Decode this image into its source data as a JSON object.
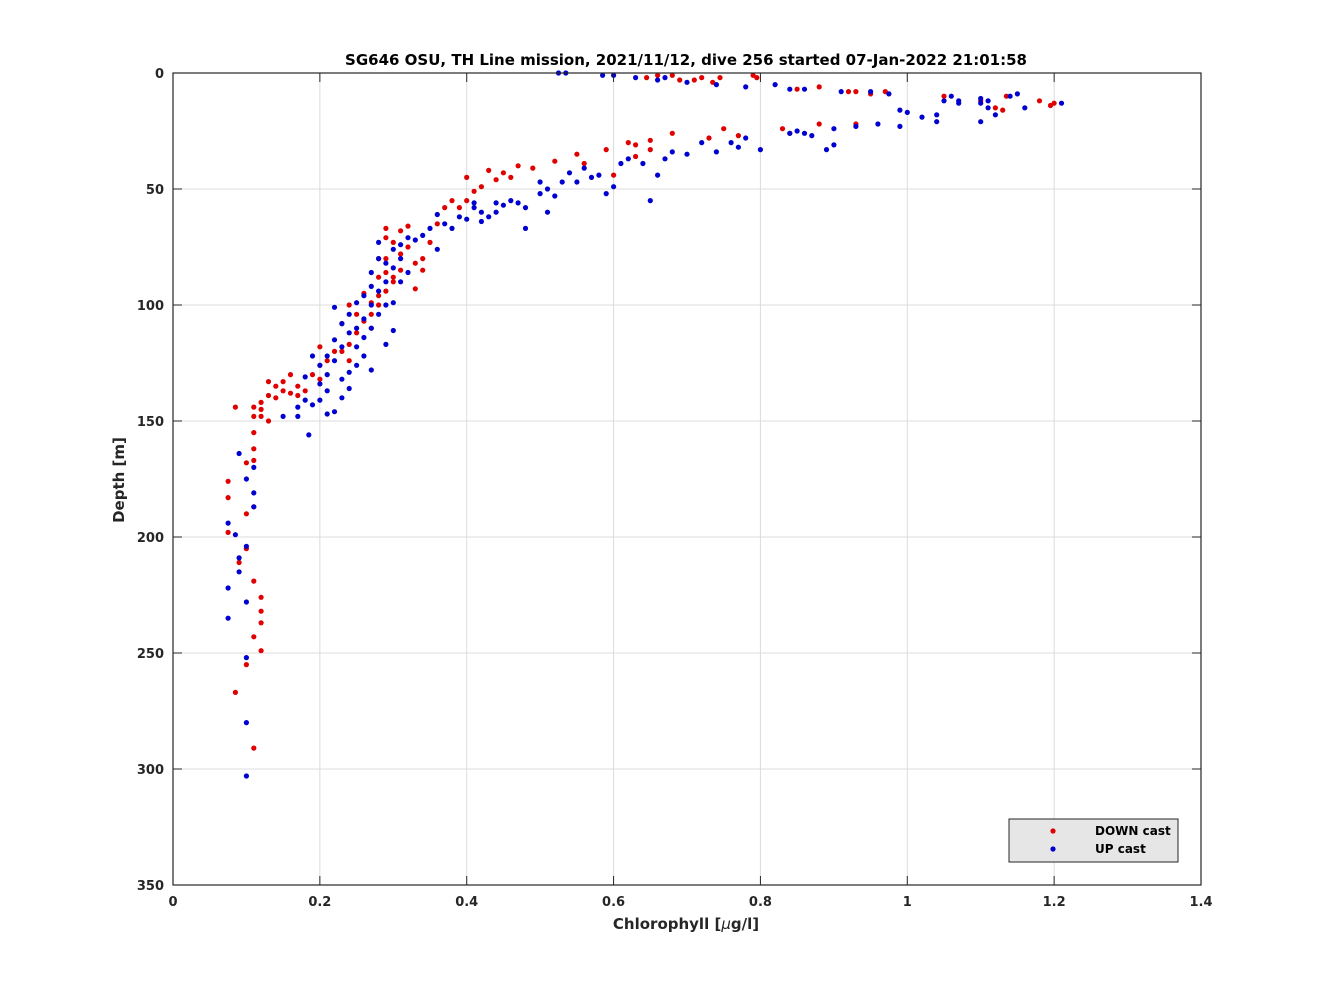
{
  "chart_data": {
    "type": "scatter",
    "title": "SG646 OSU, TH Line mission, 2021/11/12, dive 256 started 07-Jan-2022 21:01:58",
    "xlabel": "Chlorophyll [",
    "xlabel_mu": "µ",
    "xlabel_unit": "g/l]",
    "ylabel": "Depth [m]",
    "xlim": [
      0,
      1.4
    ],
    "ylim": [
      0,
      350
    ],
    "y_reversed": true,
    "grid": true,
    "legend_position": "bottom-right",
    "x_ticks": [
      "0",
      "0.2",
      "0.4",
      "0.6",
      "0.8",
      "1",
      "1.2",
      "1.4"
    ],
    "y_ticks": [
      "0",
      "50",
      "100",
      "150",
      "200",
      "250",
      "300",
      "350"
    ],
    "series": [
      {
        "name": "DOWN cast",
        "color": "#e00000",
        "points": [
          [
            0.645,
            2
          ],
          [
            0.66,
            1
          ],
          [
            0.68,
            1
          ],
          [
            0.69,
            3
          ],
          [
            0.71,
            3
          ],
          [
            0.72,
            2
          ],
          [
            0.735,
            4
          ],
          [
            0.745,
            2
          ],
          [
            0.79,
            1
          ],
          [
            0.795,
            2
          ],
          [
            0.85,
            7
          ],
          [
            0.88,
            6
          ],
          [
            0.92,
            8
          ],
          [
            0.93,
            8
          ],
          [
            0.95,
            9
          ],
          [
            0.97,
            8
          ],
          [
            1.05,
            10
          ],
          [
            1.1,
            12
          ],
          [
            1.12,
            15
          ],
          [
            1.13,
            16
          ],
          [
            1.135,
            10
          ],
          [
            1.18,
            12
          ],
          [
            1.195,
            14
          ],
          [
            1.2,
            13
          ],
          [
            0.83,
            24
          ],
          [
            0.84,
            26
          ],
          [
            0.88,
            22
          ],
          [
            0.93,
            22
          ],
          [
            0.75,
            24
          ],
          [
            0.73,
            28
          ],
          [
            0.77,
            27
          ],
          [
            0.68,
            26
          ],
          [
            0.65,
            29
          ],
          [
            0.63,
            31
          ],
          [
            0.62,
            30
          ],
          [
            0.65,
            33
          ],
          [
            0.63,
            36
          ],
          [
            0.59,
            33
          ],
          [
            0.55,
            35
          ],
          [
            0.56,
            39
          ],
          [
            0.6,
            44
          ],
          [
            0.52,
            38
          ],
          [
            0.49,
            41
          ],
          [
            0.47,
            40
          ],
          [
            0.46,
            45
          ],
          [
            0.45,
            43
          ],
          [
            0.44,
            46
          ],
          [
            0.43,
            42
          ],
          [
            0.42,
            49
          ],
          [
            0.41,
            51
          ],
          [
            0.4,
            45
          ],
          [
            0.4,
            55
          ],
          [
            0.39,
            58
          ],
          [
            0.38,
            55
          ],
          [
            0.37,
            58
          ],
          [
            0.36,
            65
          ],
          [
            0.35,
            73
          ],
          [
            0.34,
            80
          ],
          [
            0.34,
            85
          ],
          [
            0.33,
            82
          ],
          [
            0.33,
            93
          ],
          [
            0.32,
            66
          ],
          [
            0.32,
            75
          ],
          [
            0.31,
            68
          ],
          [
            0.31,
            78
          ],
          [
            0.31,
            85
          ],
          [
            0.3,
            73
          ],
          [
            0.3,
            88
          ],
          [
            0.3,
            90
          ],
          [
            0.29,
            67
          ],
          [
            0.29,
            71
          ],
          [
            0.29,
            80
          ],
          [
            0.29,
            86
          ],
          [
            0.29,
            94
          ],
          [
            0.28,
            80
          ],
          [
            0.28,
            88
          ],
          [
            0.28,
            96
          ],
          [
            0.28,
            100
          ],
          [
            0.27,
            99
          ],
          [
            0.27,
            104
          ],
          [
            0.27,
            110
          ],
          [
            0.26,
            95
          ],
          [
            0.26,
            107
          ],
          [
            0.25,
            104
          ],
          [
            0.25,
            112
          ],
          [
            0.24,
            100
          ],
          [
            0.24,
            117
          ],
          [
            0.24,
            124
          ],
          [
            0.23,
            108
          ],
          [
            0.23,
            120
          ],
          [
            0.22,
            120
          ],
          [
            0.21,
            124
          ],
          [
            0.2,
            118
          ],
          [
            0.2,
            126
          ],
          [
            0.2,
            132
          ],
          [
            0.19,
            130
          ],
          [
            0.18,
            137
          ],
          [
            0.17,
            135
          ],
          [
            0.17,
            139
          ],
          [
            0.16,
            130
          ],
          [
            0.16,
            138
          ],
          [
            0.15,
            133
          ],
          [
            0.15,
            137
          ],
          [
            0.14,
            140
          ],
          [
            0.14,
            135
          ],
          [
            0.13,
            139
          ],
          [
            0.13,
            133
          ],
          [
            0.12,
            142
          ],
          [
            0.12,
            145
          ],
          [
            0.12,
            148
          ],
          [
            0.11,
            144
          ],
          [
            0.11,
            148
          ],
          [
            0.11,
            155
          ],
          [
            0.11,
            162
          ],
          [
            0.13,
            150
          ],
          [
            0.085,
            144
          ],
          [
            0.11,
            167
          ],
          [
            0.1,
            168
          ],
          [
            0.075,
            176
          ],
          [
            0.075,
            183
          ],
          [
            0.075,
            198
          ],
          [
            0.1,
            190
          ],
          [
            0.11,
            187
          ],
          [
            0.1,
            205
          ],
          [
            0.09,
            211
          ],
          [
            0.11,
            219
          ],
          [
            0.12,
            226
          ],
          [
            0.12,
            232
          ],
          [
            0.12,
            237
          ],
          [
            0.11,
            243
          ],
          [
            0.12,
            249
          ],
          [
            0.1,
            255
          ],
          [
            0.085,
            267
          ],
          [
            0.11,
            291
          ]
        ]
      },
      {
        "name": "UP cast",
        "color": "#0000d0",
        "points": [
          [
            0.525,
            0
          ],
          [
            0.535,
            0
          ],
          [
            0.585,
            1
          ],
          [
            0.6,
            1
          ],
          [
            0.63,
            2
          ],
          [
            0.66,
            3
          ],
          [
            0.67,
            2
          ],
          [
            0.7,
            4
          ],
          [
            0.74,
            5
          ],
          [
            0.78,
            6
          ],
          [
            0.82,
            5
          ],
          [
            0.84,
            7
          ],
          [
            0.86,
            7
          ],
          [
            0.91,
            8
          ],
          [
            0.95,
            8
          ],
          [
            0.975,
            9
          ],
          [
            0.99,
            16
          ],
          [
            1.0,
            17
          ],
          [
            1.02,
            19
          ],
          [
            1.04,
            18
          ],
          [
            1.04,
            21
          ],
          [
            1.05,
            12
          ],
          [
            1.06,
            10
          ],
          [
            1.07,
            12
          ],
          [
            1.07,
            13
          ],
          [
            1.1,
            13
          ],
          [
            1.1,
            11
          ],
          [
            1.11,
            12
          ],
          [
            1.11,
            15
          ],
          [
            1.12,
            18
          ],
          [
            1.14,
            10
          ],
          [
            1.15,
            9
          ],
          [
            1.16,
            15
          ],
          [
            1.21,
            13
          ],
          [
            1.1,
            21
          ],
          [
            0.84,
            26
          ],
          [
            0.85,
            25
          ],
          [
            0.86,
            26
          ],
          [
            0.87,
            27
          ],
          [
            0.89,
            33
          ],
          [
            0.9,
            31
          ],
          [
            0.9,
            24
          ],
          [
            0.93,
            23
          ],
          [
            0.96,
            22
          ],
          [
            0.99,
            23
          ],
          [
            0.8,
            33
          ],
          [
            0.78,
            28
          ],
          [
            0.77,
            32
          ],
          [
            0.76,
            30
          ],
          [
            0.74,
            34
          ],
          [
            0.72,
            30
          ],
          [
            0.7,
            35
          ],
          [
            0.68,
            34
          ],
          [
            0.67,
            37
          ],
          [
            0.66,
            44
          ],
          [
            0.65,
            55
          ],
          [
            0.64,
            39
          ],
          [
            0.62,
            37
          ],
          [
            0.61,
            39
          ],
          [
            0.6,
            49
          ],
          [
            0.59,
            52
          ],
          [
            0.58,
            44
          ],
          [
            0.57,
            45
          ],
          [
            0.56,
            41
          ],
          [
            0.55,
            47
          ],
          [
            0.54,
            43
          ],
          [
            0.53,
            47
          ],
          [
            0.52,
            53
          ],
          [
            0.51,
            50
          ],
          [
            0.51,
            60
          ],
          [
            0.5,
            47
          ],
          [
            0.5,
            52
          ],
          [
            0.48,
            58
          ],
          [
            0.48,
            67
          ],
          [
            0.47,
            56
          ],
          [
            0.46,
            55
          ],
          [
            0.45,
            57
          ],
          [
            0.44,
            56
          ],
          [
            0.44,
            60
          ],
          [
            0.43,
            62
          ],
          [
            0.42,
            60
          ],
          [
            0.42,
            64
          ],
          [
            0.41,
            56
          ],
          [
            0.41,
            58
          ],
          [
            0.4,
            63
          ],
          [
            0.39,
            62
          ],
          [
            0.38,
            67
          ],
          [
            0.37,
            65
          ],
          [
            0.36,
            61
          ],
          [
            0.36,
            76
          ],
          [
            0.35,
            67
          ],
          [
            0.34,
            70
          ],
          [
            0.33,
            72
          ],
          [
            0.32,
            71
          ],
          [
            0.32,
            86
          ],
          [
            0.31,
            74
          ],
          [
            0.31,
            80
          ],
          [
            0.31,
            90
          ],
          [
            0.3,
            76
          ],
          [
            0.3,
            84
          ],
          [
            0.3,
            99
          ],
          [
            0.3,
            111
          ],
          [
            0.29,
            82
          ],
          [
            0.29,
            90
          ],
          [
            0.29,
            100
          ],
          [
            0.29,
            117
          ],
          [
            0.28,
            73
          ],
          [
            0.28,
            80
          ],
          [
            0.28,
            94
          ],
          [
            0.28,
            104
          ],
          [
            0.27,
            86
          ],
          [
            0.27,
            92
          ],
          [
            0.27,
            100
          ],
          [
            0.27,
            110
          ],
          [
            0.27,
            128
          ],
          [
            0.26,
            96
          ],
          [
            0.26,
            106
          ],
          [
            0.26,
            114
          ],
          [
            0.26,
            122
          ],
          [
            0.25,
            99
          ],
          [
            0.25,
            110
          ],
          [
            0.25,
            118
          ],
          [
            0.25,
            126
          ],
          [
            0.24,
            104
          ],
          [
            0.24,
            112
          ],
          [
            0.24,
            129
          ],
          [
            0.24,
            136
          ],
          [
            0.23,
            108
          ],
          [
            0.23,
            118
          ],
          [
            0.23,
            132
          ],
          [
            0.23,
            140
          ],
          [
            0.22,
            101
          ],
          [
            0.22,
            115
          ],
          [
            0.22,
            124
          ],
          [
            0.22,
            146
          ],
          [
            0.21,
            122
          ],
          [
            0.21,
            130
          ],
          [
            0.21,
            137
          ],
          [
            0.21,
            147
          ],
          [
            0.2,
            126
          ],
          [
            0.2,
            134
          ],
          [
            0.2,
            141
          ],
          [
            0.19,
            122
          ],
          [
            0.19,
            143
          ],
          [
            0.18,
            131
          ],
          [
            0.18,
            141
          ],
          [
            0.185,
            156
          ],
          [
            0.17,
            144
          ],
          [
            0.17,
            148
          ],
          [
            0.15,
            148
          ],
          [
            0.09,
            164
          ],
          [
            0.11,
            170
          ],
          [
            0.1,
            175
          ],
          [
            0.11,
            181
          ],
          [
            0.11,
            187
          ],
          [
            0.075,
            194
          ],
          [
            0.085,
            199
          ],
          [
            0.1,
            204
          ],
          [
            0.09,
            209
          ],
          [
            0.09,
            215
          ],
          [
            0.075,
            222
          ],
          [
            0.1,
            228
          ],
          [
            0.075,
            235
          ],
          [
            0.1,
            252
          ],
          [
            0.1,
            280
          ],
          [
            0.1,
            303
          ]
        ]
      }
    ]
  }
}
